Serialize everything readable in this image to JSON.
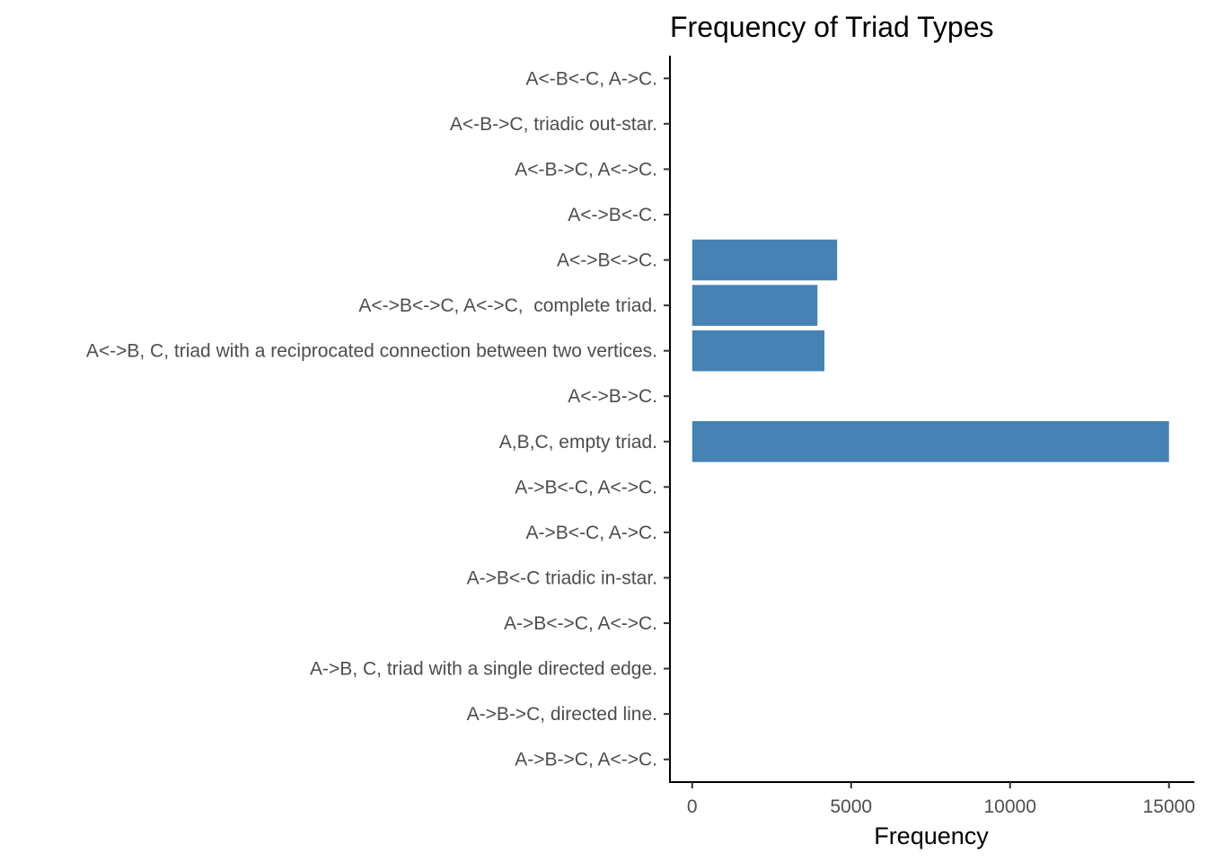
{
  "chart_data": {
    "type": "bar",
    "orientation": "horizontal",
    "title": "Frequency of Triad Types",
    "xlabel": "Frequency",
    "ylabel": "",
    "xlim": [
      -700,
      15800
    ],
    "x_ticks": [
      0,
      5000,
      10000,
      15000
    ],
    "x_tick_labels": [
      "0",
      "5000",
      "10000",
      "15000"
    ],
    "grid": false,
    "legend": "none",
    "bar_color": "#4682b4",
    "categories": [
      "A<-B<-C, A->C.",
      "A<-B->C, triadic out-star.",
      "A<-B->C, A<->C.",
      "A<->B<-C.",
      "A<->B<->C.",
      "A<->B<->C, A<->C,  complete triad.",
      "A<->B, C, triad with a reciprocated connection between two vertices.",
      "A<->B->C.",
      "A,B,C, empty triad.",
      "A->B<-C, A<->C.",
      "A->B<-C, A->C.",
      "A->B<-C triadic in-star.",
      "A->B<->C, A<->C.",
      "A->B, C, triad with a single directed edge.",
      "A->B->C, directed line.",
      "A->B->C, A<->C."
    ],
    "values": [
      0,
      0,
      0,
      0,
      4560,
      3940,
      4160,
      0,
      15000,
      0,
      0,
      0,
      0,
      0,
      0,
      0
    ]
  }
}
